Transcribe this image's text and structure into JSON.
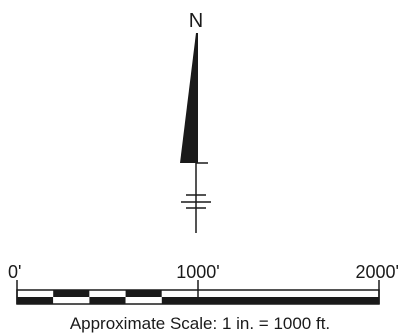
{
  "north_arrow": {
    "label": "N",
    "icon": "north-arrow-icon"
  },
  "scale_bar": {
    "ticks": [
      {
        "label": "0'",
        "value": 0
      },
      {
        "label": "1000'",
        "value": 1000
      },
      {
        "label": "2000'",
        "value": 2000
      }
    ],
    "max_value": 2000,
    "subdivided_to": 1000,
    "subdivisions": 5,
    "caption": "Approximate Scale: 1 in. = 1000 ft."
  },
  "colors": {
    "ink": "#1a1a1a",
    "paper": "#ffffff"
  }
}
